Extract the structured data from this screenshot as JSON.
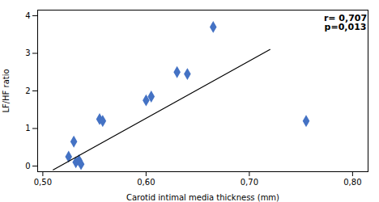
{
  "chart_data": {
    "type": "scatter",
    "xlabel": "Carotid intimal media thickness (mm)",
    "ylabel": "LF/HF ratio",
    "annotation": "r= 0,707\np=0,013",
    "series": [
      {
        "type": "scatter",
        "color": "#4472C4",
        "marker": "diamond",
        "x": [
          0.525,
          0.53,
          0.532,
          0.535,
          0.537,
          0.555,
          0.558,
          0.6,
          0.605,
          0.63,
          0.64,
          0.665,
          0.755
        ],
        "values": [
          0.25,
          0.65,
          0.1,
          0.15,
          0.05,
          1.25,
          1.2,
          1.75,
          1.85,
          2.5,
          2.45,
          3.7,
          1.2
        ]
      },
      {
        "type": "line",
        "color": "black",
        "line_style": "solid",
        "x": [
          0.51,
          0.72
        ],
        "values": [
          -0.1,
          3.1
        ]
      }
    ],
    "xlim": [
      0.495,
      0.815
    ],
    "ylim": [
      -0.15,
      4.15
    ],
    "xticks": [
      {
        "value": 0.5,
        "label": "0,50"
      },
      {
        "value": 0.6,
        "label": "0,60"
      },
      {
        "value": 0.7,
        "label": "0,70"
      },
      {
        "value": 0.8,
        "label": "0,80"
      }
    ],
    "yticks": [
      0,
      1,
      2,
      3,
      4
    ],
    "grid": false
  }
}
